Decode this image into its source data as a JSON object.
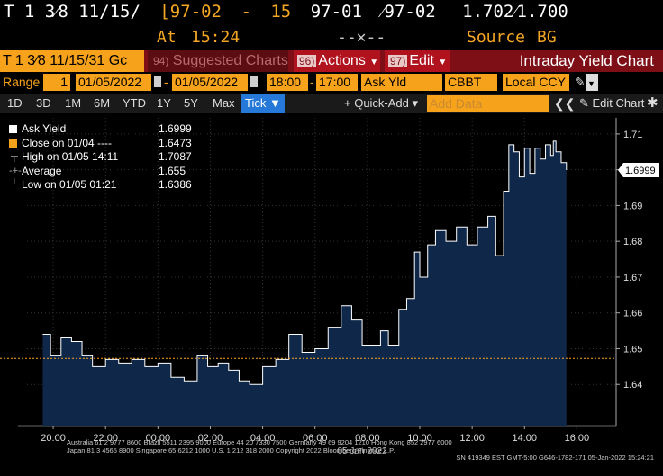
{
  "quote": {
    "security": "T 1 3⁄8 11/15/",
    "bid_price": "⌊97-02",
    "size_dash": "-",
    "size": "15",
    "last_price": "97-01",
    "ask_price": "⁄97-02",
    "yields": "1.702⁄1.700"
  },
  "status": {
    "at_label": "At",
    "time": "15:24",
    "change": "--✕--",
    "source_label": "Source",
    "source": "BG"
  },
  "titlebar": {
    "ticker": "T 1 3⁄8 11/15/31 Gc",
    "suggested_num": "94)",
    "suggested": "Suggested Charts",
    "actions_num": "96)",
    "actions": "Actions",
    "edit_num": "97)",
    "edit": "Edit",
    "chart_title": "Intraday Yield Chart"
  },
  "range": {
    "label": "Range",
    "days": "1",
    "start_date": "01/05/2022",
    "end_date": "01/05/2022",
    "start_time": "18:00",
    "end_time": "17:00",
    "field": "Ask Yld",
    "source": "CBBT",
    "currency": "Local CCY"
  },
  "periods": [
    "1D",
    "3D",
    "1M",
    "6M",
    "YTD",
    "1Y",
    "5Y",
    "Max"
  ],
  "tick": "Tick ▼",
  "quick_add": "+ Quick-Add ▾",
  "add_data_placeholder": "Add Data",
  "edit_chart": "✎ Edit Chart",
  "legend": [
    {
      "label": "Ask Yield",
      "value": "1.6999"
    },
    {
      "label": "Close on 01/04 ----",
      "value": "1.6473"
    },
    {
      "label": "High on 01/05 14:11",
      "value": "1.7087"
    },
    {
      "label": "Average",
      "value": "1.655"
    },
    {
      "label": "Low on 01/05 01:21",
      "value": "1.6386"
    }
  ],
  "chart_data": {
    "type": "area",
    "y_ticks": [
      "1.71",
      "1.70",
      "1.69",
      "1.68",
      "1.67",
      "1.66",
      "1.65",
      "1.64"
    ],
    "x_ticks": [
      "20:00",
      "22:00",
      "00:00",
      "02:00",
      "04:00",
      "06:00",
      "08:00",
      "10:00",
      "12:00",
      "14:00",
      "16:00"
    ],
    "date_label": "05 Jan 2022",
    "last_value_label": "1.6999",
    "close_line": 1.6473,
    "ylim": [
      1.6305,
      1.7145
    ],
    "x_hours": [
      19.6,
      19.9,
      20.3,
      20.7,
      21.1,
      21.5,
      22.0,
      22.5,
      23.0,
      23.5,
      24.0,
      24.5,
      25.0,
      25.5,
      25.9,
      26.3,
      26.7,
      27.1,
      27.5,
      28.0,
      28.5,
      29.0,
      29.5,
      30.0,
      30.5,
      31.0,
      31.4,
      31.8,
      32.2,
      32.5,
      32.8,
      33.2,
      33.5,
      33.8,
      34.0,
      34.3,
      34.6,
      35.0,
      35.4,
      35.8,
      36.2,
      36.6,
      36.9,
      37.2,
      37.4,
      37.6,
      37.8,
      38.0,
      38.2,
      38.4,
      38.6,
      38.8,
      39.0,
      39.1,
      39.2,
      39.4,
      39.6
    ],
    "values": [
      1.654,
      1.648,
      1.653,
      1.652,
      1.648,
      1.645,
      1.647,
      1.646,
      1.647,
      1.645,
      1.646,
      1.642,
      1.641,
      1.648,
      1.645,
      1.646,
      1.644,
      1.641,
      1.64,
      1.645,
      1.647,
      1.654,
      1.649,
      1.65,
      1.656,
      1.662,
      1.658,
      1.651,
      1.651,
      1.655,
      1.651,
      1.661,
      1.664,
      1.677,
      1.67,
      1.679,
      1.683,
      1.68,
      1.684,
      1.679,
      1.684,
      1.687,
      1.676,
      1.694,
      1.707,
      1.705,
      1.698,
      1.706,
      1.699,
      1.706,
      1.703,
      1.707,
      1.704,
      1.708,
      1.705,
      1.702,
      1.6999
    ]
  },
  "footer": {
    "line1": "Australia 61 2 9777 8600  Brazil 5511 2395 9000  Europe 44 20 7330 7500  Germany 49 69 9204 1210  Hong Kong 852 2977 6000",
    "line2": "Japan 81 3 4565 8900     Singapore 65 6212 1000     U.S. 1 212 318 2000          Copyright 2022 Bloomberg Finance L.P.",
    "line3": "SN 419349 EST  GMT-5:00 G646-1782-171 05-Jan-2022 15:24:21"
  },
  "colors": {
    "orange": "#f7a21b",
    "red_bar": "#7e0f17",
    "area_fill": "#0f2748",
    "line": "#ffffff",
    "close_line": "#f5a623"
  }
}
